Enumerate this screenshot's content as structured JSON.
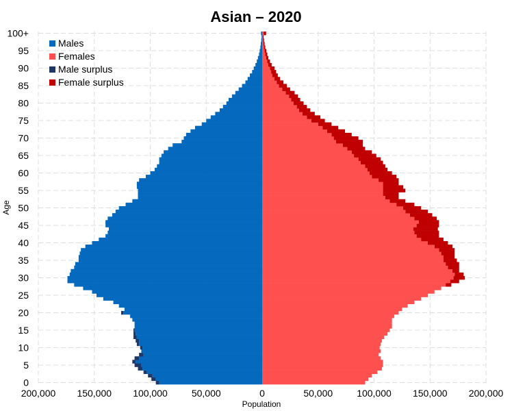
{
  "chart_data": {
    "type": "bar",
    "orientation": "horizontal-pyramid",
    "title": "Asian – 2020",
    "xlabel": "Population",
    "ylabel": "Age",
    "xlim": [
      -200000,
      200000
    ],
    "x_ticks": [
      -200000,
      -150000,
      -100000,
      -50000,
      0,
      50000,
      100000,
      150000,
      200000
    ],
    "x_tick_labels": [
      "200,000",
      "150,000",
      "100,000",
      "50,000",
      "0",
      "50,000",
      "100,000",
      "150,000",
      "200,000"
    ],
    "y_ticks": [
      0,
      5,
      10,
      15,
      20,
      25,
      30,
      35,
      40,
      45,
      50,
      55,
      60,
      65,
      70,
      75,
      80,
      85,
      90,
      95,
      100
    ],
    "y_tick_labels": [
      "0",
      "5",
      "10",
      "15",
      "20",
      "25",
      "30",
      "35",
      "40",
      "45",
      "50",
      "55",
      "60",
      "65",
      "70",
      "75",
      "80",
      "85",
      "90",
      "95",
      "100+"
    ],
    "grid": true,
    "legend_position": "top-left",
    "colors": {
      "males": "#0569be",
      "females": "#ff5050",
      "male_surplus": "#1f3765",
      "female_surplus": "#c00000"
    },
    "series": [
      {
        "name": "Males",
        "key": "males"
      },
      {
        "name": "Females",
        "key": "females"
      },
      {
        "name": "Male surplus",
        "key": "male_surplus"
      },
      {
        "name": "Female surplus",
        "key": "female_surplus"
      }
    ],
    "ages": [
      0,
      1,
      2,
      3,
      4,
      5,
      6,
      7,
      8,
      9,
      10,
      11,
      12,
      13,
      14,
      15,
      16,
      17,
      18,
      19,
      20,
      21,
      22,
      23,
      24,
      25,
      26,
      27,
      28,
      29,
      30,
      31,
      32,
      33,
      34,
      35,
      36,
      37,
      38,
      39,
      40,
      41,
      42,
      43,
      44,
      45,
      46,
      47,
      48,
      49,
      50,
      51,
      52,
      53,
      54,
      55,
      56,
      57,
      58,
      59,
      60,
      61,
      62,
      63,
      64,
      65,
      66,
      67,
      68,
      69,
      70,
      71,
      72,
      73,
      74,
      75,
      76,
      77,
      78,
      79,
      80,
      81,
      82,
      83,
      84,
      85,
      86,
      87,
      88,
      89,
      90,
      91,
      92,
      93,
      94,
      95,
      96,
      97,
      98,
      99,
      100
    ],
    "males": [
      92000,
      95000,
      98000,
      103000,
      107000,
      108000,
      113000,
      110000,
      106000,
      108000,
      107000,
      110000,
      110000,
      112000,
      113000,
      114000,
      114000,
      114000,
      116000,
      118000,
      124000,
      123000,
      128000,
      133000,
      142000,
      148000,
      152000,
      160000,
      168000,
      174000,
      174000,
      172000,
      171000,
      168000,
      167000,
      164000,
      164000,
      163000,
      162000,
      158000,
      152000,
      146000,
      140000,
      138000,
      137000,
      140000,
      140000,
      138000,
      134000,
      131000,
      128000,
      122000,
      116000,
      111000,
      111000,
      111000,
      112000,
      112000,
      110000,
      104000,
      100000,
      96000,
      94000,
      92000,
      92000,
      90000,
      88000,
      84000,
      80000,
      72000,
      70000,
      68000,
      64000,
      60000,
      54000,
      50000,
      46000,
      42000,
      38000,
      35000,
      32000,
      30000,
      27000,
      24000,
      21000,
      18000,
      15000,
      13000,
      11000,
      9000,
      7500,
      6000,
      4800,
      3800,
      2800,
      2200,
      1600,
      1200,
      800,
      500,
      1000
    ],
    "females": [
      92000,
      95000,
      98000,
      103000,
      107000,
      108000,
      108000,
      106000,
      104000,
      106000,
      105000,
      106000,
      107000,
      109000,
      112000,
      114000,
      116000,
      116000,
      116000,
      118000,
      122000,
      125000,
      130000,
      136000,
      142000,
      148000,
      154000,
      160000,
      164000,
      168000,
      171000,
      172000,
      170000,
      166000,
      164000,
      162000,
      162000,
      160000,
      158000,
      154000,
      148000,
      142000,
      138000,
      136000,
      135000,
      138000,
      140000,
      136000,
      132000,
      128000,
      126000,
      120000,
      114000,
      110000,
      108000,
      108000,
      108000,
      108000,
      104000,
      98000,
      96000,
      94000,
      92000,
      88000,
      86000,
      82000,
      80000,
      76000,
      72000,
      66000,
      64000,
      62000,
      58000,
      54000,
      50000,
      44000,
      40000,
      36000,
      33000,
      31000,
      28000,
      26000,
      24000,
      21000,
      18000,
      15000,
      13000,
      11000,
      9000,
      8000,
      7000,
      5500,
      4500,
      3500,
      2800,
      2200,
      1600,
      1200,
      900,
      600,
      1500
    ],
    "male_surplus": [
      3000,
      4000,
      4000,
      3000,
      4000,
      6000,
      3000,
      4000,
      4000,
      0,
      2000,
      2000,
      3000,
      3000,
      2000,
      1000,
      0,
      0,
      0,
      0,
      2000,
      0,
      0,
      0,
      0,
      0,
      0,
      0,
      0,
      0,
      0,
      0,
      0,
      0,
      0,
      0,
      0,
      0,
      0,
      0,
      0,
      0,
      0,
      0,
      0,
      0,
      0,
      0,
      0,
      0,
      0,
      0,
      0,
      0,
      0,
      0,
      0,
      0,
      0,
      0,
      0,
      0,
      0,
      0,
      0,
      0,
      0,
      0,
      0,
      0,
      0,
      0,
      0,
      0,
      0,
      0,
      0,
      0,
      0,
      0,
      0,
      0,
      0,
      0,
      0,
      0,
      0,
      0,
      0,
      0,
      0,
      0,
      0,
      0,
      0,
      0,
      0,
      0,
      0,
      0,
      0
    ],
    "female_surplus": [
      0,
      0,
      0,
      0,
      0,
      0,
      0,
      0,
      0,
      0,
      0,
      0,
      0,
      0,
      0,
      0,
      0,
      0,
      0,
      0,
      0,
      0,
      0,
      0,
      0,
      0,
      0,
      0,
      5000,
      8000,
      10000,
      8000,
      6000,
      10000,
      12000,
      12000,
      10000,
      12000,
      14000,
      16000,
      18000,
      20000,
      20000,
      22000,
      22000,
      20000,
      18000,
      20000,
      20000,
      20000,
      16000,
      16000,
      14000,
      12000,
      14000,
      20000,
      18000,
      14000,
      18000,
      22000,
      20000,
      18000,
      18000,
      20000,
      20000,
      20000,
      18000,
      16000,
      18000,
      24000,
      22000,
      18000,
      16000,
      14000,
      12000,
      12000,
      12000,
      11000,
      10000,
      9000,
      9000,
      8000,
      8000,
      8000,
      7000,
      7000,
      6000,
      5000,
      5000,
      4500,
      4000,
      3000,
      2500,
      2000,
      1800,
      1500,
      1200,
      1000,
      800,
      600,
      2000
    ]
  }
}
